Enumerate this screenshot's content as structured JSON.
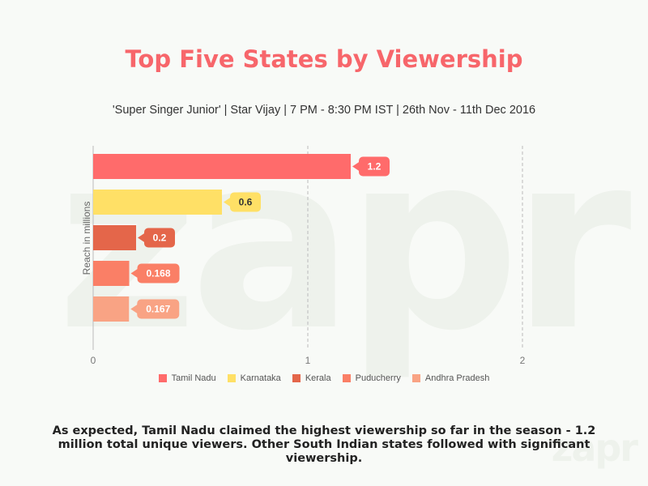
{
  "watermark": "zapr",
  "caption": "As expected, Tamil Nadu claimed the highest viewership so far in the season - 1.2 million total unique viewers. Other South Indian states followed with significant viewership.",
  "chart_data": {
    "type": "bar",
    "orientation": "horizontal",
    "title": "Top Five States by Viewership",
    "subtitle": "'Super Singer Junior' | Star Vijay | 7 PM - 8:30 PM IST | 26th Nov - 11th Dec 2016",
    "ylabel": "Reach in millions",
    "xlim": [
      0,
      2
    ],
    "x_ticks": [
      "0",
      "1",
      "2"
    ],
    "grid": true,
    "legend_position": "bottom",
    "series": [
      {
        "name": "Tamil Nadu",
        "value": 1.2,
        "label": "1.2",
        "color": "#ff6b6b",
        "label_text_color": "#ffffff"
      },
      {
        "name": "Karnataka",
        "value": 0.6,
        "label": "0.6",
        "color": "#ffe066",
        "label_text_color": "#333333"
      },
      {
        "name": "Kerala",
        "value": 0.2,
        "label": "0.2",
        "color": "#e4664a",
        "label_text_color": "#ffffff"
      },
      {
        "name": "Puducherry",
        "value": 0.168,
        "label": "0.168",
        "color": "#fa7f66",
        "label_text_color": "#ffffff"
      },
      {
        "name": "Andhra Pradesh",
        "value": 0.167,
        "label": "0.167",
        "color": "#f9a384",
        "label_text_color": "#ffffff"
      }
    ]
  }
}
